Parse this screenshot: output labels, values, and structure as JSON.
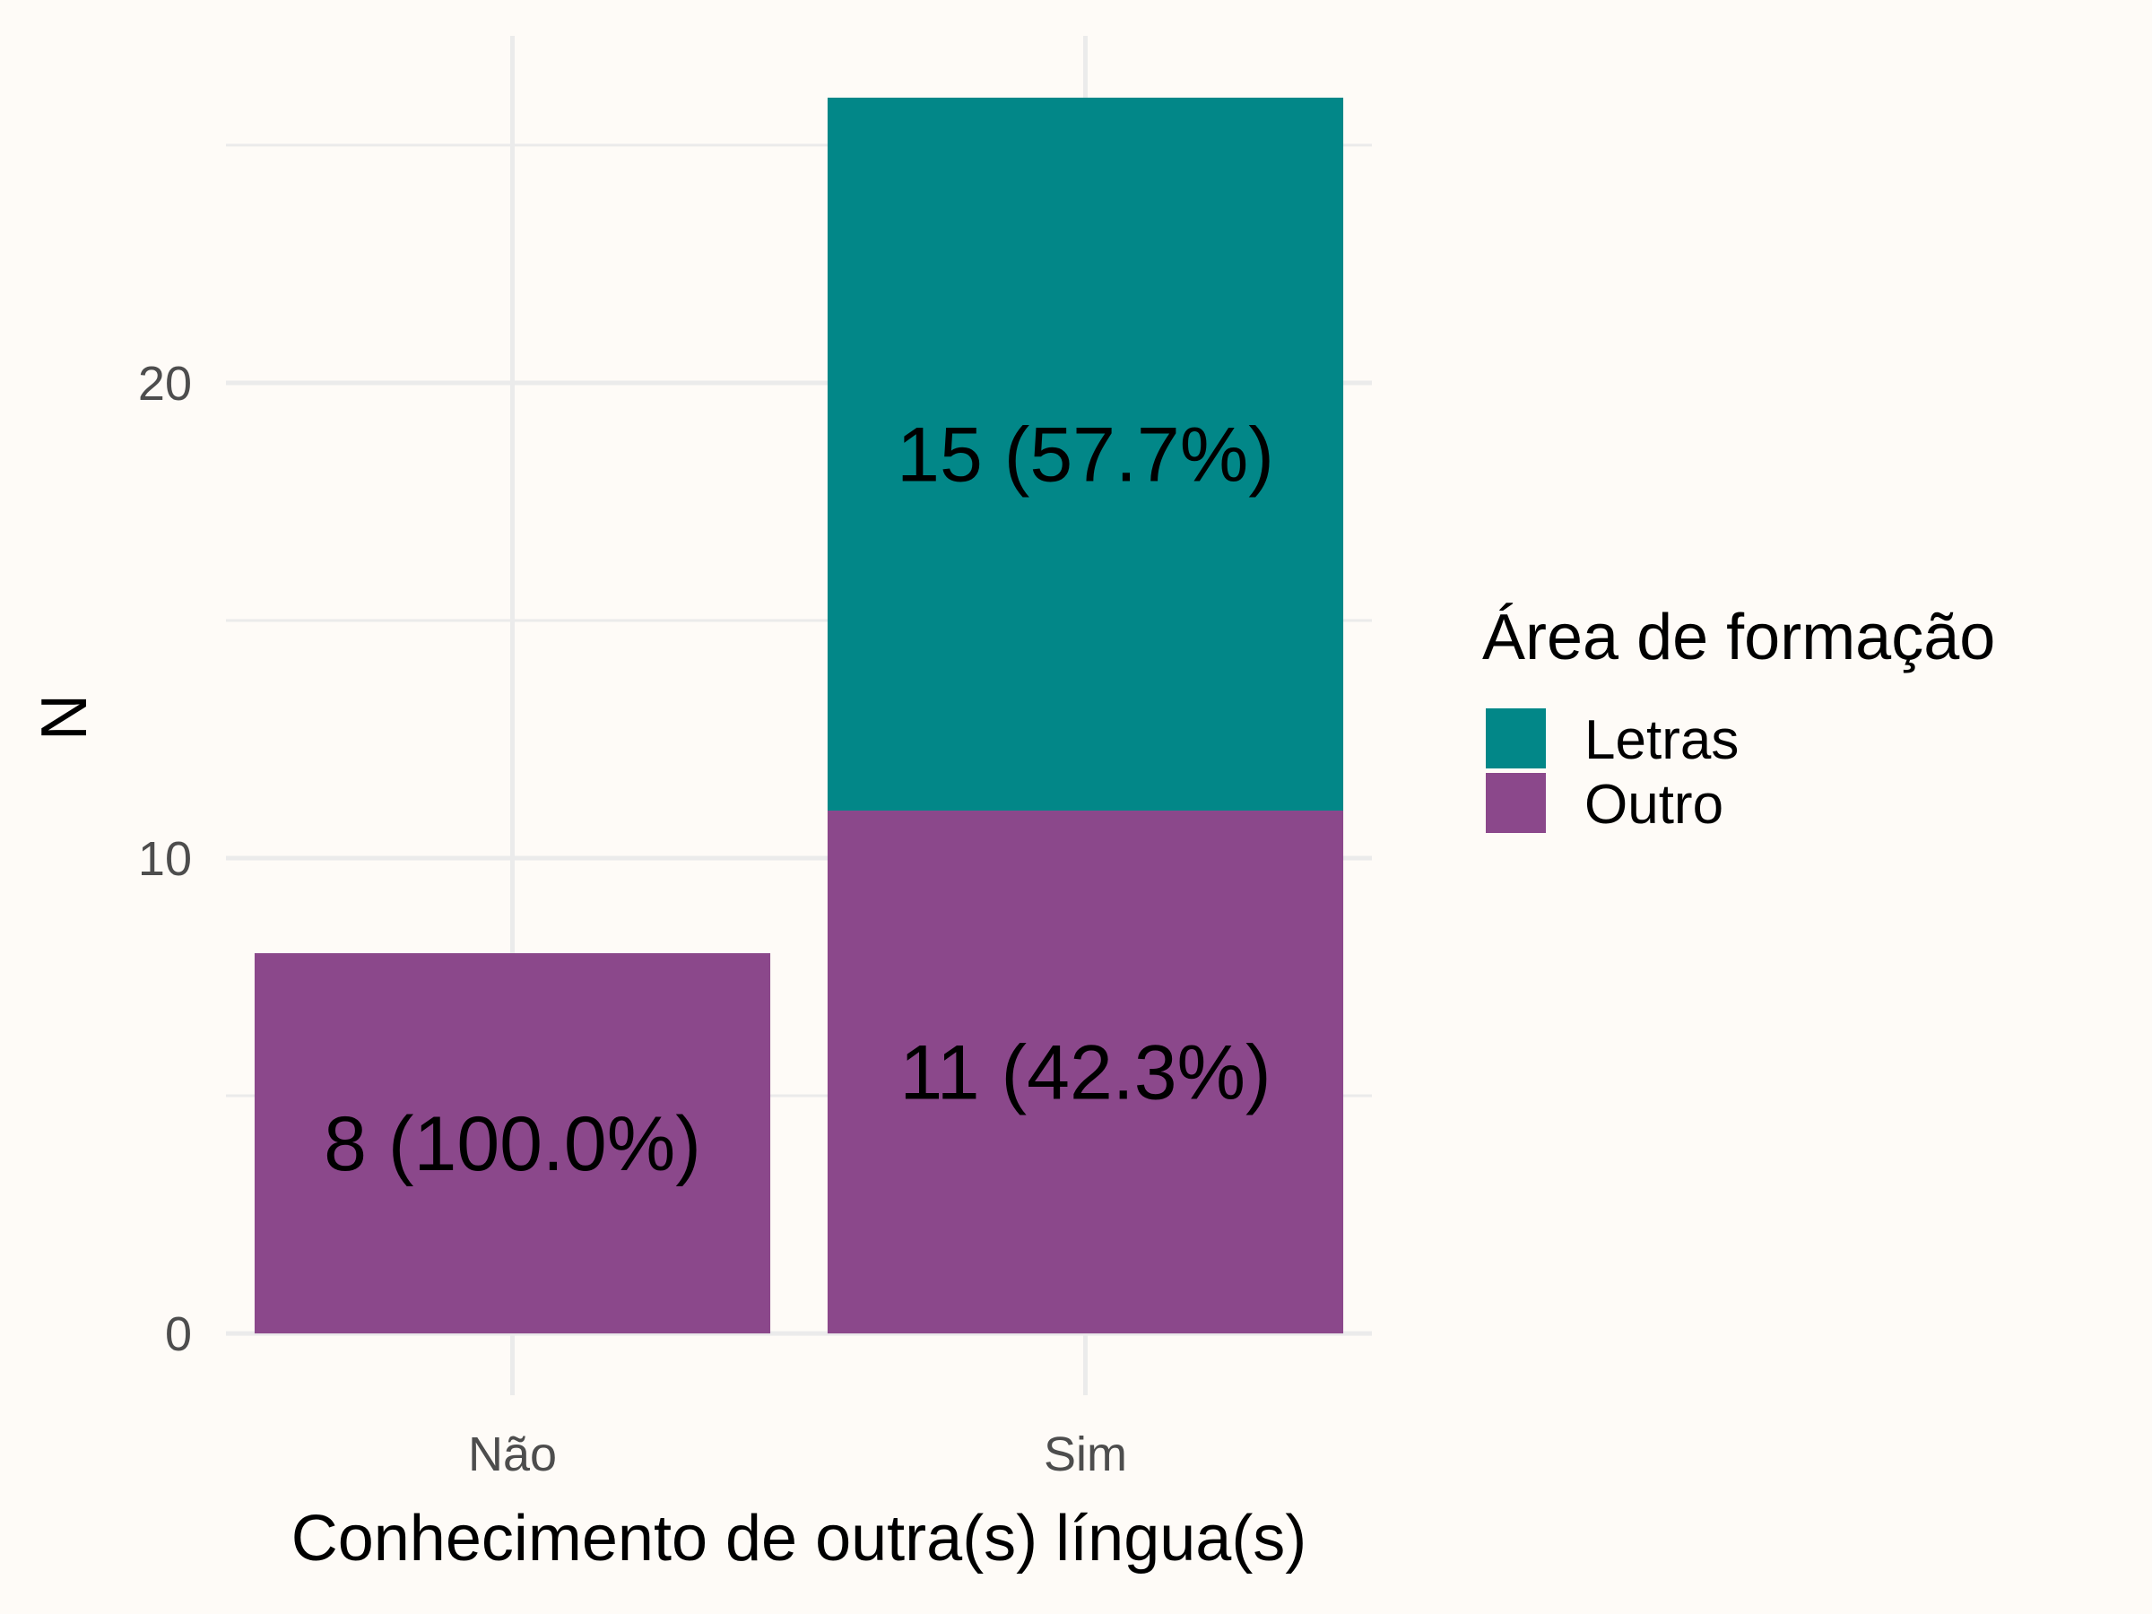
{
  "chart_data": {
    "type": "bar",
    "stacked": true,
    "categories": [
      "Não",
      "Sim"
    ],
    "series": [
      {
        "name": "Outro",
        "color": "#8b488b",
        "values": [
          8,
          11
        ],
        "labels": [
          "8 (100.0%)",
          "11 (42.3%)"
        ]
      },
      {
        "name": "Letras",
        "color": "#028788",
        "values": [
          0,
          15
        ],
        "labels": [
          "",
          "15 (57.7%)"
        ]
      }
    ],
    "legend_order": [
      "Letras",
      "Outro"
    ],
    "xlabel": "Conhecimento de outra(s) língua(s)",
    "ylabel": "N",
    "yticks": [
      0,
      10,
      20
    ],
    "ylim": [
      -1.3,
      27.3
    ],
    "legend_title": "Área de formação",
    "legend_position": "right",
    "grid": true
  }
}
